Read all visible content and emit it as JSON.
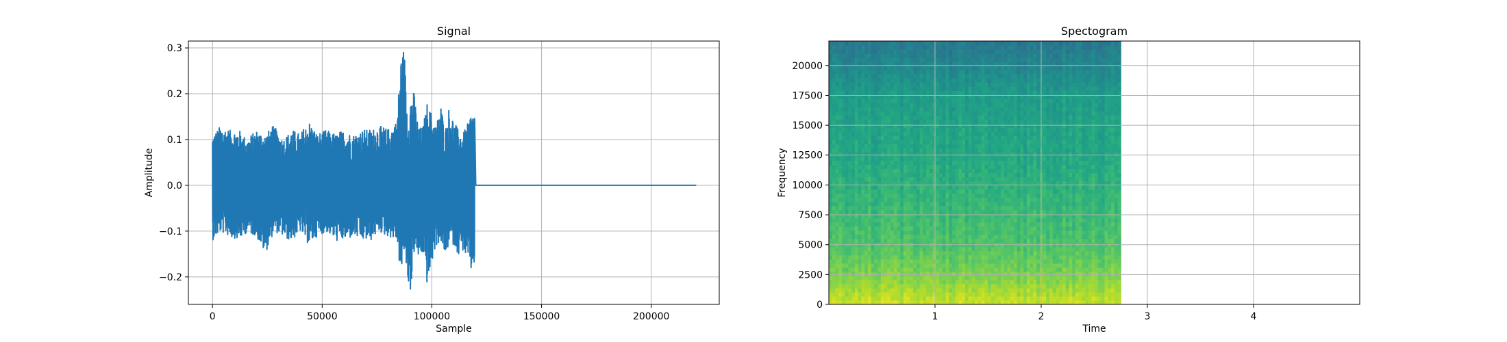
{
  "chart_data": [
    {
      "type": "line",
      "title": "Signal",
      "xlabel": "Sample",
      "ylabel": "Amplitude",
      "xlim": [
        -11000,
        231000
      ],
      "ylim": [
        -0.26,
        0.315
      ],
      "xticks": [
        0,
        50000,
        100000,
        150000,
        200000
      ],
      "yticks": [
        -0.2,
        -0.1,
        0.0,
        0.1,
        0.2,
        0.3
      ],
      "xtick_labels": [
        "0",
        "50000",
        "100000",
        "150000",
        "200000"
      ],
      "ytick_labels": [
        "−0.2",
        "−0.1",
        "0.0",
        "0.1",
        "0.2",
        "0.3"
      ],
      "grid": true,
      "color": "#1f77b4",
      "series": [
        {
          "x": [
            0,
            4000,
            8000,
            12000,
            16000,
            20000,
            24000,
            28000,
            32000,
            36000,
            40000,
            44000,
            48000,
            52000,
            56000,
            60000,
            64000,
            68000,
            72000,
            76000,
            80000,
            84000,
            86000,
            87500,
            89000,
            90500,
            92000,
            94000,
            96000,
            98000,
            100000,
            102000,
            104000,
            106000,
            108000,
            110000,
            112000,
            114000,
            116000,
            118000,
            119500,
            120500,
            150000,
            200000,
            220500
          ],
          "upper": [
            0.11,
            0.13,
            0.12,
            0.12,
            0.1,
            0.12,
            0.11,
            0.13,
            0.1,
            0.12,
            0.11,
            0.14,
            0.11,
            0.12,
            0.11,
            0.12,
            0.11,
            0.12,
            0.12,
            0.13,
            0.12,
            0.14,
            0.29,
            0.29,
            0.14,
            0.2,
            0.2,
            0.12,
            0.13,
            0.18,
            0.15,
            0.13,
            0.18,
            0.12,
            0.17,
            0.14,
            0.12,
            0.11,
            0.13,
            0.16,
            0.16,
            0.0,
            0.0,
            0.0,
            0.0
          ],
          "lower": [
            -0.12,
            -0.1,
            -0.11,
            -0.12,
            -0.1,
            -0.11,
            -0.15,
            -0.1,
            -0.11,
            -0.12,
            -0.1,
            -0.13,
            -0.11,
            -0.1,
            -0.12,
            -0.12,
            -0.11,
            -0.12,
            -0.12,
            -0.1,
            -0.11,
            -0.12,
            -0.2,
            -0.14,
            -0.21,
            -0.23,
            -0.14,
            -0.16,
            -0.15,
            -0.22,
            -0.17,
            -0.13,
            -0.12,
            -0.16,
            -0.12,
            -0.13,
            -0.15,
            -0.14,
            -0.16,
            -0.19,
            -0.17,
            0.0,
            0.0,
            0.0,
            0.0
          ]
        }
      ]
    },
    {
      "type": "heatmap",
      "title": "Spectogram",
      "xlabel": "Time",
      "ylabel": "Frequency",
      "xlim": [
        0,
        5.0
      ],
      "ylim": [
        0,
        22050
      ],
      "xticks": [
        1,
        2,
        3,
        4
      ],
      "yticks": [
        0,
        2500,
        5000,
        7500,
        10000,
        12500,
        15000,
        17500,
        20000
      ],
      "xtick_labels": [
        "1",
        "2",
        "3",
        "4"
      ],
      "ytick_labels": [
        "0",
        "2500",
        "5000",
        "7500",
        "10000",
        "12500",
        "15000",
        "17500",
        "20000"
      ],
      "grid": true,
      "colormap": "viridis",
      "data_time_range": [
        0,
        2.75
      ],
      "freq_bins": [
        0,
        2500,
        5000,
        7500,
        10000,
        12500,
        15000,
        17500,
        20000,
        22050
      ],
      "level_by_frequency": [
        0.92,
        0.8,
        0.72,
        0.68,
        0.64,
        0.6,
        0.58,
        0.55,
        0.46,
        0.4
      ]
    }
  ]
}
